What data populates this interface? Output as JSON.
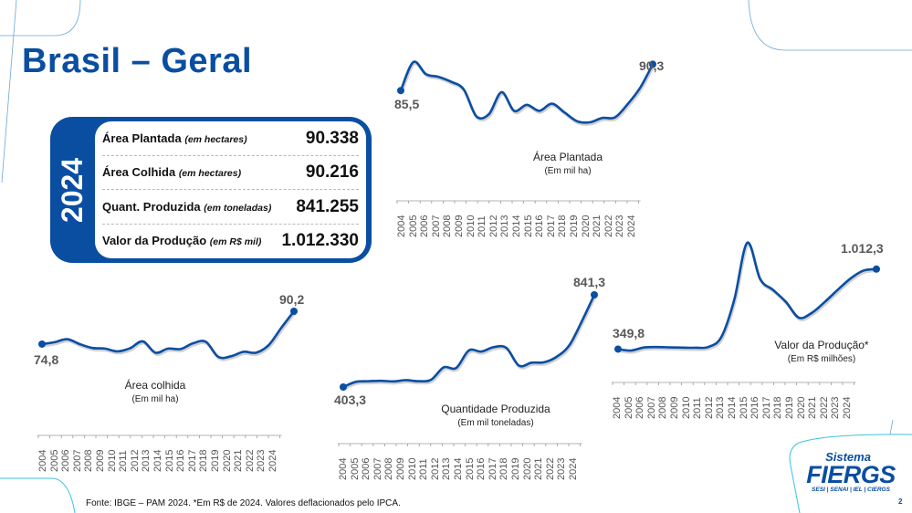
{
  "header": {
    "title": "Brasil – Geral"
  },
  "summary_card": {
    "year": "2024",
    "rows": [
      {
        "label": "Área Plantada",
        "unit": "(em hectares)",
        "value": "90.338"
      },
      {
        "label": "Área Colhida",
        "unit": "(em hectares)",
        "value": "90.216"
      },
      {
        "label": "Quant. Produzida",
        "unit": "(em toneladas)",
        "value": "841.255"
      },
      {
        "label": "Valor da Produção",
        "unit": "(em R$ mil)",
        "value": "1.012.330"
      }
    ]
  },
  "colors": {
    "accent": "#0a4ea2",
    "line": "#0a4ea2",
    "deco_line": "#6aa7d8",
    "deco_cyan": "#3cc3e0"
  },
  "chart_data": [
    {
      "id": "area_plantada",
      "type": "line",
      "title": "Área Plantada",
      "subtitle": "(Em mil ha)",
      "x": [
        "2004",
        "2005",
        "2006",
        "2007",
        "2008",
        "2009",
        "2010",
        "2011",
        "2012",
        "2013",
        "2014",
        "2015",
        "2016",
        "2017",
        "2018",
        "2019",
        "2020",
        "2021",
        "2022",
        "2023",
        "2024"
      ],
      "values": [
        85.5,
        90.7,
        88.5,
        88.0,
        87.1,
        85.7,
        80.8,
        81.2,
        85.2,
        81.8,
        82.9,
        81.8,
        83.1,
        81.5,
        79.9,
        79.7,
        80.5,
        80.6,
        83.0,
        86.0,
        90.3
      ],
      "start_label": "85,5",
      "end_label": "90,3"
    },
    {
      "id": "area_colhida",
      "type": "line",
      "title": "Área colhida",
      "subtitle": "(Em mil ha)",
      "x": [
        "2004",
        "2005",
        "2006",
        "2007",
        "2008",
        "2009",
        "2010",
        "2011",
        "2012",
        "2013",
        "2014",
        "2015",
        "2016",
        "2017",
        "2018",
        "2019",
        "2020",
        "2021",
        "2022",
        "2023",
        "2024"
      ],
      "values": [
        74.8,
        75.7,
        77.1,
        74.8,
        73.0,
        72.7,
        71.4,
        72.9,
        76.1,
        70.8,
        72.7,
        72.5,
        75.2,
        75.9,
        68.8,
        69.1,
        71.2,
        70.8,
        74.4,
        82.5,
        90.2
      ],
      "start_label": "74,8",
      "end_label": "90,2"
    },
    {
      "id": "quantidade_produzida",
      "type": "line",
      "title": "Quantidade Produzida",
      "subtitle": "(Em mil toneladas)",
      "x": [
        "2004",
        "2005",
        "2006",
        "2007",
        "2008",
        "2009",
        "2010",
        "2011",
        "2012",
        "2013",
        "2014",
        "2015",
        "2016",
        "2017",
        "2018",
        "2019",
        "2020",
        "2021",
        "2022",
        "2023",
        "2024"
      ],
      "values": [
        403.3,
        428,
        431,
        433,
        430,
        436,
        431,
        438,
        497,
        494,
        577,
        572,
        593,
        589,
        505,
        519,
        521,
        547,
        601,
        715,
        841.3
      ],
      "start_label": "403,3",
      "end_label": "841,3"
    },
    {
      "id": "valor_producao",
      "type": "line",
      "title": "Valor da Produção*",
      "subtitle": "(Em R$ milhões)",
      "x": [
        "2004",
        "2005",
        "2006",
        "2007",
        "2008",
        "2009",
        "2010",
        "2011",
        "2012",
        "2013",
        "2014",
        "2015",
        "2016",
        "2017",
        "2018",
        "2019",
        "2020",
        "2021",
        "2022",
        "2023",
        "2024"
      ],
      "values": [
        349.8,
        338,
        363,
        367,
        364,
        362,
        361,
        368,
        450,
        760,
        1230,
        930,
        840,
        740,
        610,
        650,
        740,
        840,
        935,
        1000,
        1012.3
      ],
      "start_label": "349,8",
      "end_label": "1.012,3"
    }
  ],
  "footer": {
    "source": "Fonte: IBGE – PAM 2024. *Em R$ de 2024. Valores deflacionados pelo IPCA."
  },
  "logo": {
    "line1": "Sistema",
    "line2": "FIERGS",
    "line3": "SESI | SENAI | IEL | CIERGS"
  },
  "page_number": "2"
}
